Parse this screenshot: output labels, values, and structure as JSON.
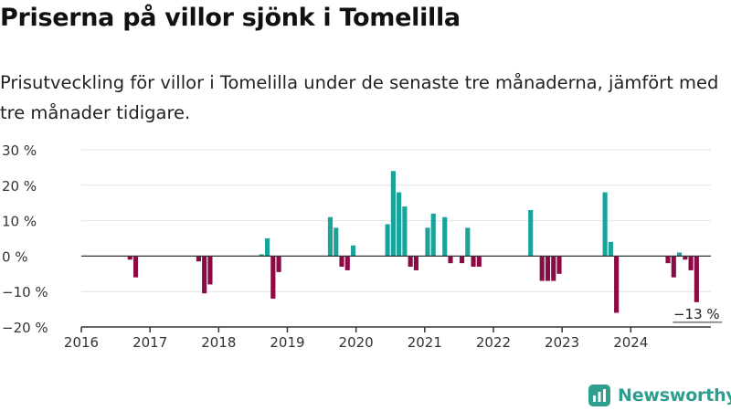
{
  "title": "Priserna på villor sjönk i Tomelilla",
  "subtitle": "Prisutveckling för villor i Tomelilla under de senaste tre månaderna, jämfört med tre månader tidigare.",
  "brand": {
    "name": "Newsworthy",
    "icon": "newsworthy-logo-icon"
  },
  "colors": {
    "positive": "#1aa39a",
    "negative": "#8c0a45",
    "axis": "#333333",
    "grid": "#e2e2e2",
    "brand": "#2e9e8f"
  },
  "chart_data": {
    "type": "bar",
    "y_unit": "%",
    "ylim": [
      -20,
      30
    ],
    "y_ticks": [
      {
        "value": 30,
        "label": "30 %"
      },
      {
        "value": 20,
        "label": "20 %"
      },
      {
        "value": 10,
        "label": "10 %"
      },
      {
        "value": 0,
        "label": "0 %"
      },
      {
        "value": -10,
        "label": "−10 %"
      },
      {
        "value": -20,
        "label": "−20 %"
      }
    ],
    "xlim": [
      "2016-01",
      "2025-03"
    ],
    "x_ticks": [
      "2016",
      "2017",
      "2018",
      "2019",
      "2020",
      "2021",
      "2022",
      "2023",
      "2024"
    ],
    "grid": true,
    "last_value_label": "−13 %",
    "series": [
      {
        "frequency": "monthly",
        "values": [
          {
            "x": "2016-09",
            "y": -1
          },
          {
            "x": "2016-10",
            "y": -6
          },
          {
            "x": "2017-09",
            "y": -1.5
          },
          {
            "x": "2017-10",
            "y": -10.5
          },
          {
            "x": "2017-11",
            "y": -8
          },
          {
            "x": "2018-08",
            "y": 0.5
          },
          {
            "x": "2018-09",
            "y": 5
          },
          {
            "x": "2018-10",
            "y": -12
          },
          {
            "x": "2018-11",
            "y": -4.5
          },
          {
            "x": "2019-08",
            "y": 11
          },
          {
            "x": "2019-09",
            "y": 8
          },
          {
            "x": "2019-10",
            "y": -3
          },
          {
            "x": "2019-11",
            "y": -4
          },
          {
            "x": "2019-12",
            "y": 3
          },
          {
            "x": "2020-06",
            "y": 9
          },
          {
            "x": "2020-07",
            "y": 24
          },
          {
            "x": "2020-08",
            "y": 18
          },
          {
            "x": "2020-09",
            "y": 14
          },
          {
            "x": "2020-10",
            "y": -3
          },
          {
            "x": "2020-11",
            "y": -4
          },
          {
            "x": "2021-01",
            "y": 8
          },
          {
            "x": "2021-02",
            "y": 12
          },
          {
            "x": "2021-04",
            "y": 11
          },
          {
            "x": "2021-05",
            "y": -2
          },
          {
            "x": "2021-07",
            "y": -2
          },
          {
            "x": "2021-08",
            "y": 8
          },
          {
            "x": "2021-09",
            "y": -3
          },
          {
            "x": "2021-10",
            "y": -3
          },
          {
            "x": "2022-07",
            "y": 13
          },
          {
            "x": "2022-09",
            "y": -7
          },
          {
            "x": "2022-10",
            "y": -7
          },
          {
            "x": "2022-11",
            "y": -7
          },
          {
            "x": "2022-12",
            "y": -5
          },
          {
            "x": "2023-08",
            "y": 18
          },
          {
            "x": "2023-09",
            "y": 4
          },
          {
            "x": "2023-10",
            "y": -16
          },
          {
            "x": "2024-07",
            "y": -2
          },
          {
            "x": "2024-08",
            "y": -6
          },
          {
            "x": "2024-09",
            "y": 1
          },
          {
            "x": "2024-10",
            "y": -1
          },
          {
            "x": "2024-11",
            "y": -4
          },
          {
            "x": "2024-12",
            "y": -13
          }
        ]
      }
    ]
  }
}
